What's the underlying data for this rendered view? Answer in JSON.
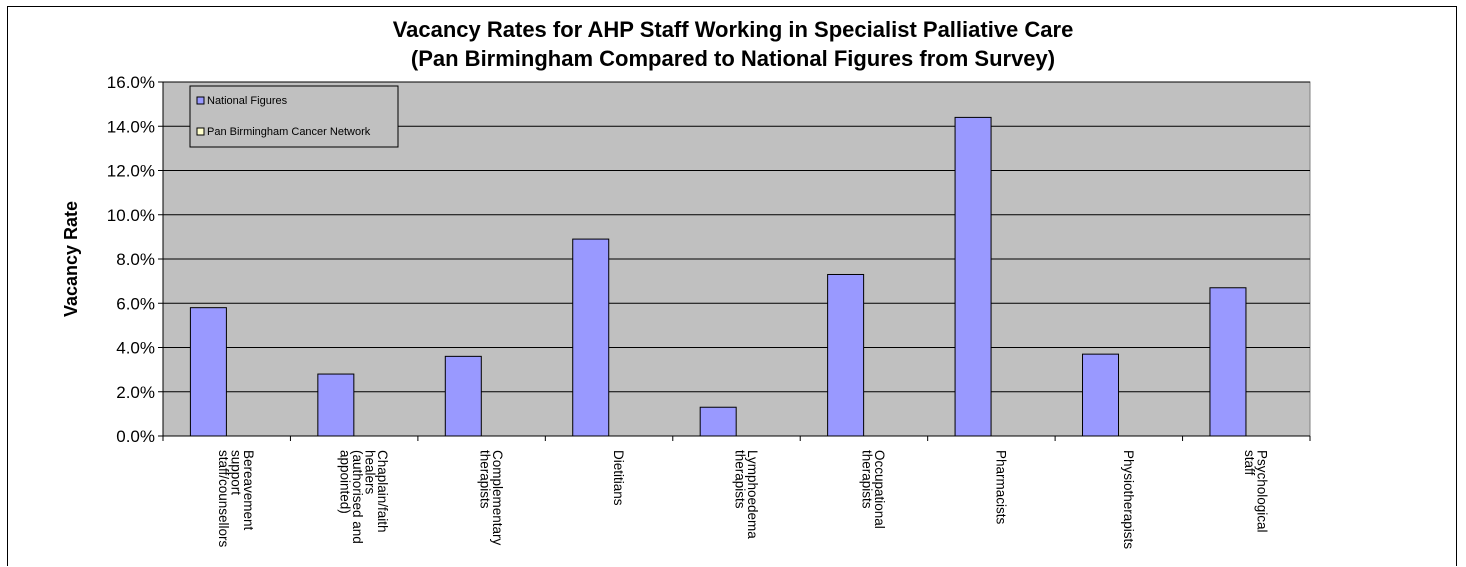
{
  "chart_data": {
    "type": "bar",
    "title_lines": [
      "Vacancy Rates for AHP Staff Working in Specialist Palliative Care",
      "(Pan Birmingham Compared to National Figures from Survey)"
    ],
    "ylabel": "Vacancy Rate",
    "ylim": [
      0,
      0.16
    ],
    "y_ticks": [
      "0.0%",
      "2.0%",
      "4.0%",
      "6.0%",
      "8.0%",
      "10.0%",
      "12.0%",
      "14.0%",
      "16.0%"
    ],
    "categories": [
      [
        "Bereavement",
        "support",
        "staff/counsellors"
      ],
      [
        "Chaplain/faith",
        "healers",
        "(authorised and",
        "appointed)"
      ],
      [
        "Complementary",
        "therapists"
      ],
      [
        "Dietitians"
      ],
      [
        "Lymphoedema",
        "therapists"
      ],
      [
        "Occupational",
        "therapists"
      ],
      [
        "Pharmacists"
      ],
      [
        "Physiotherapists"
      ],
      [
        "Psychological",
        "staff"
      ]
    ],
    "series": [
      {
        "name": "National Figures",
        "color": "#9999ff",
        "values": [
          0.058,
          0.028,
          0.036,
          0.089,
          0.013,
          0.073,
          0.144,
          0.037,
          0.067
        ]
      },
      {
        "name": "Pan Birmingham Cancer Network",
        "color": "#ffffcc",
        "values": [
          null,
          null,
          null,
          null,
          null,
          null,
          null,
          null,
          null
        ]
      }
    ],
    "grid": true,
    "plot_background": "#c0c0c0",
    "legend_position": "top-left"
  }
}
